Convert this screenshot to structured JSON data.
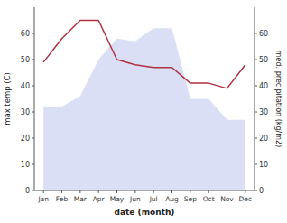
{
  "chart_data": {
    "type": "line",
    "categories": [
      "Jan",
      "Feb",
      "Mar",
      "Apr",
      "May",
      "Jun",
      "Jul",
      "Aug",
      "Sep",
      "Oct",
      "Nov",
      "Dec"
    ],
    "series": [
      {
        "type": "area",
        "axis": "y2",
        "color": "#b0b8e8",
        "values": [
          32,
          32,
          36,
          50,
          58,
          57,
          62,
          62,
          35,
          35,
          27,
          27
        ]
      },
      {
        "type": "line",
        "color": "#b03040",
        "values": [
          49,
          58,
          65,
          65,
          50,
          48,
          47,
          47,
          41,
          41,
          39,
          48
        ]
      }
    ],
    "xlabel": "date (month)",
    "ylabel": "max temp (C)",
    "y2label": "med. precipitation (kg/m2)",
    "ylim": [
      0,
      70
    ],
    "yticks": [
      0,
      10,
      20,
      30,
      40,
      50,
      60
    ],
    "y2lim": [
      0,
      70
    ],
    "y2ticks": [
      0,
      10,
      20,
      30,
      40,
      50,
      60
    ]
  }
}
